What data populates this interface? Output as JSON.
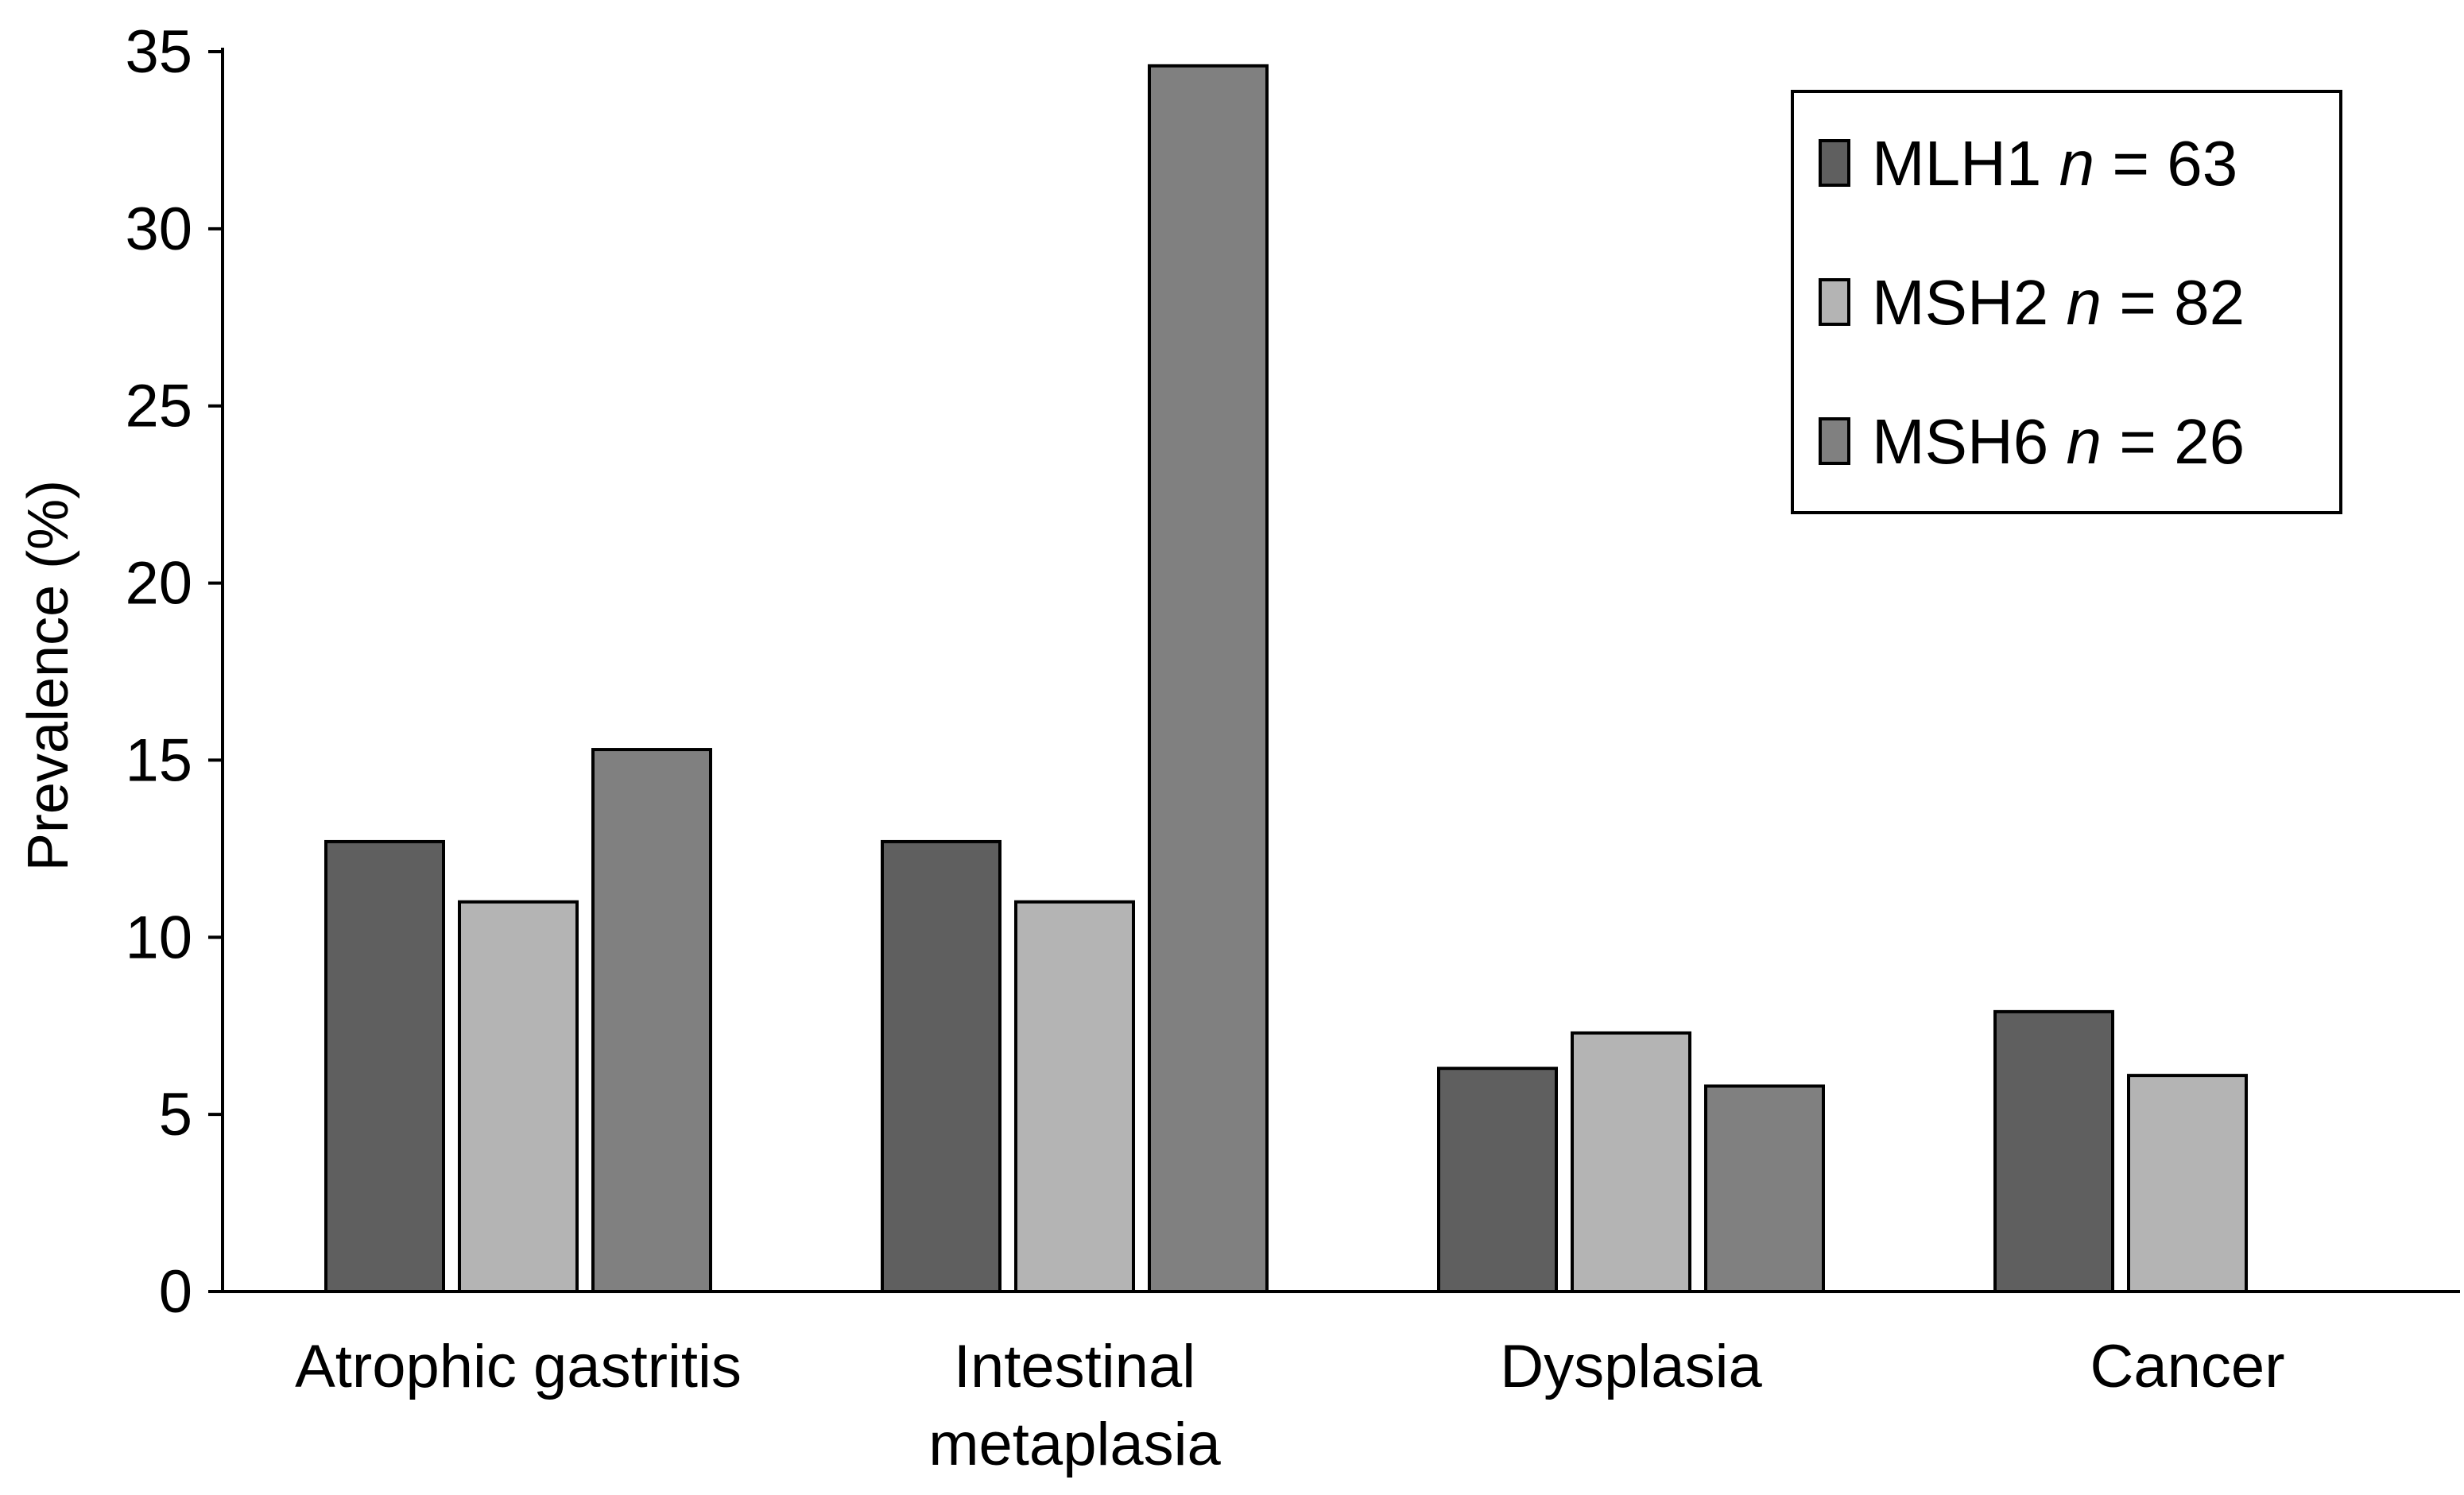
{
  "chart_data": {
    "type": "bar",
    "title": "",
    "xlabel": "",
    "ylabel": "Prevalence (%)",
    "ylim": [
      0,
      35
    ],
    "yticks": [
      0,
      5,
      10,
      15,
      20,
      25,
      30,
      35
    ],
    "categories": [
      "Atrophic gastritis",
      "Intestinal metaplasia",
      "Dysplasia",
      "Cancer"
    ],
    "category_lines": [
      [
        "Atrophic gastritis"
      ],
      [
        "Intestinal",
        "metaplasia"
      ],
      [
        "Dysplasia"
      ],
      [
        "Cancer"
      ]
    ],
    "series": [
      {
        "name": "MLH1",
        "n_label": "n",
        "n_eq": " = 63",
        "color": "#5f5f5f",
        "values": [
          12.7,
          12.7,
          6.3,
          7.9
        ]
      },
      {
        "name": "MSH2",
        "n_label": "n",
        "n_eq": " = 82",
        "color": "#b4b4b4",
        "values": [
          11.0,
          11.0,
          7.3,
          6.1
        ]
      },
      {
        "name": "MSH6",
        "n_label": "n",
        "n_eq": " = 26",
        "color": "#808080",
        "values": [
          15.3,
          34.6,
          5.8,
          null
        ]
      }
    ],
    "grid": false,
    "legend_position": "top-right"
  }
}
